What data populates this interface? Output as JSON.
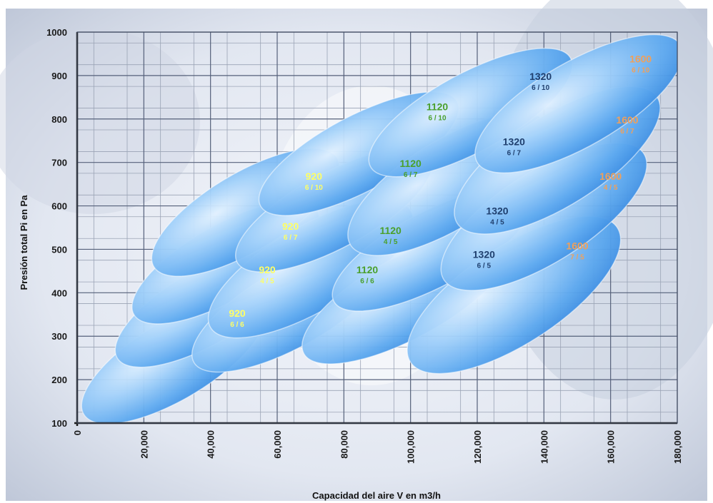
{
  "chart_data": {
    "type": "scatter",
    "title": "",
    "xlabel": "Capacidad del aire V en m3/h",
    "ylabel": "Presión total Pi en Pa",
    "xlim": [
      0,
      180000
    ],
    "ylim": [
      100,
      1000
    ],
    "grid": true,
    "x_ticks": [
      "0",
      "20,000",
      "40,000",
      "60,000",
      "80,000",
      "100,000",
      "120,000",
      "140,000",
      "160,000",
      "180,000"
    ],
    "y_ticks": [
      "100",
      "200",
      "300",
      "400",
      "500",
      "600",
      "700",
      "800",
      "900",
      "1000"
    ],
    "regions": [
      {
        "size": "920",
        "ratio": "6 / 6",
        "label_x": 48000,
        "label_y": 345,
        "x_range": [
          2000,
          56000
        ],
        "y_range": [
          120,
          370
        ],
        "color": "#ffff66"
      },
      {
        "size": "920",
        "ratio": "4 / 5",
        "label_x": 57000,
        "label_y": 445,
        "x_range": [
          12000,
          66000
        ],
        "y_range": [
          250,
          490
        ],
        "color": "#ffff66"
      },
      {
        "size": "920",
        "ratio": "6 / 7",
        "label_x": 64000,
        "label_y": 545,
        "x_range": [
          17000,
          72000
        ],
        "y_range": [
          350,
          590
        ],
        "color": "#ffff66"
      },
      {
        "size": "920",
        "ratio": "6 / 10",
        "label_x": 71000,
        "label_y": 660,
        "x_range": [
          23000,
          78000
        ],
        "y_range": [
          460,
          710
        ],
        "color": "#ffff66"
      },
      {
        "size": "1120",
        "ratio": "6 / 6",
        "label_x": 87000,
        "label_y": 445,
        "x_range": [
          35000,
          93000
        ],
        "y_range": [
          240,
          490
        ],
        "color": "#4aa02c"
      },
      {
        "size": "1120",
        "ratio": "4 / 5",
        "label_x": 94000,
        "label_y": 535,
        "x_range": [
          40000,
          100000
        ],
        "y_range": [
          320,
          590
        ],
        "color": "#4aa02c"
      },
      {
        "size": "1120",
        "ratio": "6 / 7",
        "label_x": 100000,
        "label_y": 690,
        "x_range": [
          48000,
          106000
        ],
        "y_range": [
          470,
          710
        ],
        "color": "#4aa02c"
      },
      {
        "size": "1120",
        "ratio": "6 / 10",
        "label_x": 108000,
        "label_y": 820,
        "x_range": [
          55000,
          114000
        ],
        "y_range": [
          600,
          840
        ],
        "color": "#4aa02c"
      },
      {
        "size": "1320",
        "ratio": "6 / 5",
        "label_x": 122000,
        "label_y": 480,
        "x_range": [
          68000,
          130000
        ],
        "y_range": [
          260,
          520
        ],
        "color": "#1f3f6e"
      },
      {
        "size": "1320",
        "ratio": "4 / 5",
        "label_x": 126000,
        "label_y": 580,
        "x_range": [
          77000,
          136000
        ],
        "y_range": [
          380,
          620
        ],
        "color": "#1f3f6e"
      },
      {
        "size": "1320",
        "ratio": "6 / 7",
        "label_x": 131000,
        "label_y": 740,
        "x_range": [
          82000,
          141000
        ],
        "y_range": [
          510,
          790
        ],
        "color": "#1f3f6e"
      },
      {
        "size": "1320",
        "ratio": "6 / 10",
        "label_x": 139000,
        "label_y": 890,
        "x_range": [
          88000,
          148000
        ],
        "y_range": [
          690,
          940
        ],
        "color": "#1f3f6e"
      },
      {
        "size": "1600",
        "ratio": "7 / 5",
        "label_x": 150000,
        "label_y": 500,
        "x_range": [
          100000,
          162000
        ],
        "y_range": [
          240,
          550
        ],
        "color": "#f0a05a"
      },
      {
        "size": "1600",
        "ratio": "4 / 5",
        "label_x": 160000,
        "label_y": 660,
        "x_range": [
          110000,
          170000
        ],
        "y_range": [
          430,
          720
        ],
        "color": "#f0a05a"
      },
      {
        "size": "1600",
        "ratio": "6 / 7",
        "label_x": 165000,
        "label_y": 790,
        "x_range": [
          114000,
          174000
        ],
        "y_range": [
          560,
          850
        ],
        "color": "#f0a05a"
      },
      {
        "size": "1600",
        "ratio": "6 / 10",
        "label_x": 169000,
        "label_y": 930,
        "x_range": [
          120000,
          181000
        ],
        "y_range": [
          700,
          970
        ],
        "color": "#f0a05a"
      }
    ]
  }
}
